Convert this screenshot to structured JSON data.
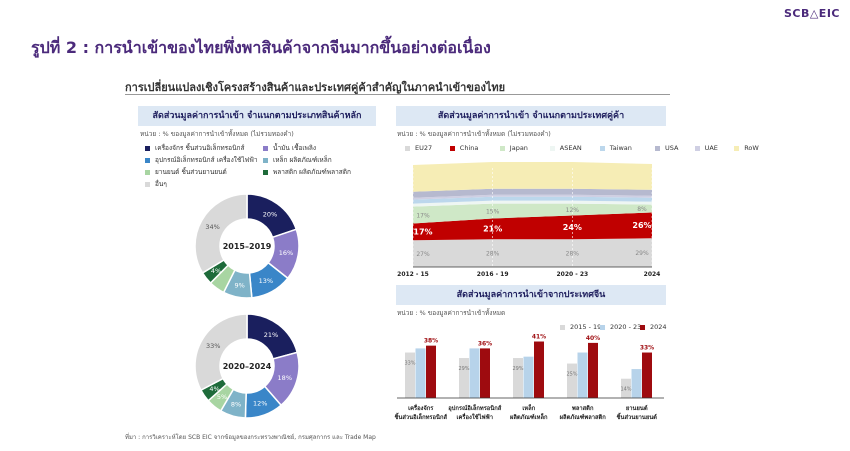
{
  "logo": "SCB△EIC",
  "title": "รูปที่ 2 : การนำเข้าของไทยพึ่งพาสินค้าจากจีนมากขึ้นอย่างต่อเนื่อง",
  "subtitle": "การเปลี่ยนแปลงเชิงโครงสร้างสินค้าและประเทศคู่ค้าสำคัญในภาคนำเข้าของไทย",
  "source": "ที่มา : การวิเคราะห์โดย SCB EIC จากข้อมูลของกระทรวงพาณิชย์, กรมศุลกากร และ Trade Map",
  "colors": {
    "accent": "#4b2a7b",
    "header_bg": "#dde8f4",
    "navy": "#1a1f5e",
    "purple": "#8b7cc8",
    "blue": "#3a86c8",
    "teal": "#7fb3c8",
    "green_light": "#a8d5a2",
    "green_dark": "#1e6b3a",
    "gray": "#d9d9d9",
    "red": "#c00000",
    "lightblue": "#b7d3ea",
    "darkred": "#9e0b0f"
  },
  "chart_data": [
    {
      "type": "pie",
      "panel_title": "สัดส่วนมูลค่าการนำเข้า จำแนกตามประเภทสินค้าหลัก",
      "unit": "หน่วย : % ของมูลค่าการนำเข้าทั้งหมด (ไม่รวมทองคำ)",
      "legend": [
        {
          "label": "เครื่องจักร ชิ้นส่วนอิเล็กทรอนิกส์",
          "color": "#1a1f5e"
        },
        {
          "label": "น้ำมัน เชื้อเพลิง",
          "color": "#8b7cc8"
        },
        {
          "label": "อุปกรณ์อิเล็กทรอนิกส์ เครื่องใช้ไฟฟ้า",
          "color": "#3a86c8"
        },
        {
          "label": "เหล็ก ผลิตภัณฑ์เหล็ก",
          "color": "#7fb3c8"
        },
        {
          "label": "ยานยนต์ ชิ้นส่วนยานยนต์",
          "color": "#a8d5a2"
        },
        {
          "label": "พลาสติก ผลิตภัณฑ์พลาสติก",
          "color": "#1e6b3a"
        },
        {
          "label": "อื่นๆ",
          "color": "#d9d9d9"
        }
      ],
      "donuts": [
        {
          "center_label": "2015–2019",
          "values": [
            20,
            16,
            13,
            9,
            5,
            4,
            34
          ],
          "labels": [
            "20%",
            "16%",
            "13%",
            "9%",
            "",
            "4%",
            "34%"
          ]
        },
        {
          "center_label": "2020–2024",
          "values": [
            21,
            18,
            12,
            8,
            5,
            4,
            33
          ],
          "labels": [
            "21%",
            "18%",
            "12%",
            "8%",
            "5%",
            "4%",
            "33%"
          ]
        }
      ]
    },
    {
      "type": "area",
      "panel_title": "สัดส่วนมูลค่าการนำเข้า จำแนกตามประเทศคู่ค้า",
      "unit": "หน่วย : % ของมูลค่าการนำเข้าทั้งหมด (ไม่รวมทองคำ)",
      "categories": [
        "2012 - 15",
        "2016 - 19",
        "2020 - 23",
        "2024"
      ],
      "series": [
        {
          "name": "RoW",
          "color": "#f6edb5",
          "values": [
            27,
            27,
            27,
            26
          ]
        },
        {
          "name": "USA",
          "color": "#b6b9cf",
          "values": [
            6,
            6,
            6,
            6
          ]
        },
        {
          "name": "UAE",
          "color": "#cfcfe3",
          "values": [
            2,
            2,
            2,
            2
          ]
        },
        {
          "name": "Taiwan",
          "color": "#bcd7ec",
          "values": [
            4,
            4,
            4,
            4
          ]
        },
        {
          "name": "ASEAN",
          "color": "#eef6f3",
          "values": [
            3,
            3,
            3,
            3
          ]
        },
        {
          "name": "Japan",
          "color": "#cfe8c7",
          "values": [
            17,
            15,
            12,
            8
          ]
        },
        {
          "name": "China",
          "color": "#c00000",
          "values": [
            17,
            21,
            24,
            26
          ]
        },
        {
          "name": "EU27",
          "color": "#d9d9d9",
          "values": [
            27,
            28,
            28,
            29
          ]
        }
      ],
      "legend_order": [
        "EU27",
        "China",
        "Japan",
        "ASEAN",
        "Taiwan",
        "USA",
        "UAE",
        "RoW"
      ],
      "data_labels": [
        {
          "series": "EU27",
          "labels": [
            "27%",
            "28%",
            "28%",
            "29%"
          ]
        },
        {
          "series": "China",
          "labels": [
            "17%",
            "21%",
            "24%",
            "26%"
          ]
        },
        {
          "series": "Japan",
          "labels": [
            "17%",
            "15%",
            "12%",
            "8%"
          ]
        }
      ]
    },
    {
      "type": "bar",
      "panel_title": "สัดส่วนมูลค่าการนำเข้าจากประเทศจีน",
      "unit": "หน่วย : % ของมูลค่าการนำเข้าทั้งหมด",
      "series": [
        {
          "name": "2015 - 19",
          "color": "#d9d9d9",
          "values": [
            33,
            29,
            29,
            25,
            14
          ]
        },
        {
          "name": "2020 - 23",
          "color": "#b7d3ea",
          "values": [
            36,
            36,
            30,
            33,
            21
          ]
        },
        {
          "name": "2024",
          "color": "#9e0b0f",
          "values": [
            38,
            36,
            41,
            40,
            33
          ]
        }
      ],
      "value_labels": [
        [
          "33%",
          "29%",
          "29%",
          "25%",
          "14%"
        ],
        [
          "",
          "",
          "",
          "",
          ""
        ],
        [
          "38%",
          "36%",
          "41%",
          "40%",
          "33%"
        ]
      ],
      "categories": [
        [
          "เครื่องจักร",
          "ชิ้นส่วนอิเล็กทรอนิกส์"
        ],
        [
          "อุปกรณ์อิเล็กทรอนิกส์",
          "เครื่องใช้ไฟฟ้า"
        ],
        [
          "เหล็ก",
          "ผลิตภัณฑ์เหล็ก"
        ],
        [
          "พลาสติก",
          "ผลิตภัณฑ์พลาสติก"
        ],
        [
          "ยานยนต์",
          "ชิ้นส่วนยานยนต์"
        ]
      ]
    }
  ]
}
